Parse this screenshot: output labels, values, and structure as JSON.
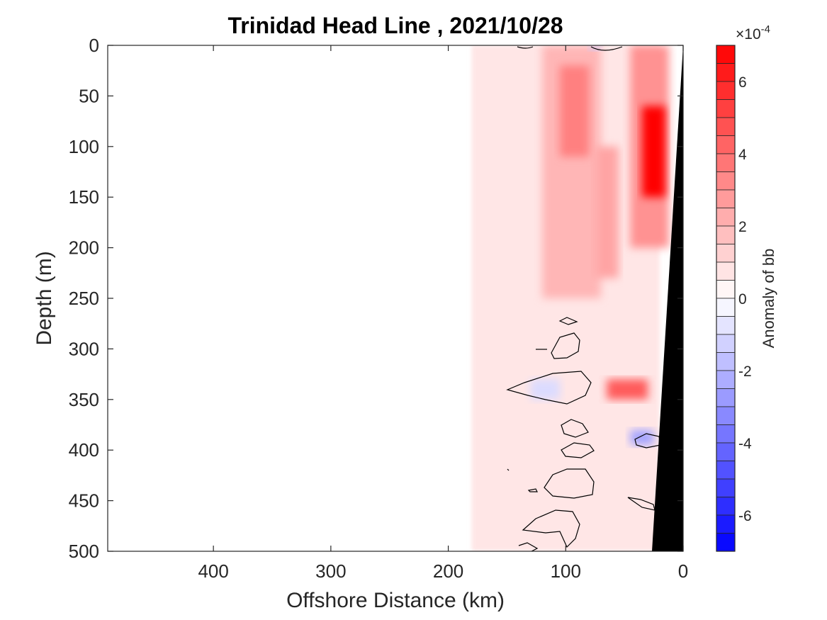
{
  "chart_data": {
    "type": "heatmap",
    "title": "Trinidad Head Line , 2021/10/28",
    "xlabel": "Offshore Distance (km)",
    "ylabel": "Depth (m)",
    "xlim": [
      490,
      0
    ],
    "ylim": [
      0,
      500
    ],
    "x_reversed": true,
    "y_reversed": true,
    "x_ticks": [
      400,
      300,
      200,
      100,
      0
    ],
    "y_ticks": [
      0,
      50,
      100,
      150,
      200,
      250,
      300,
      350,
      400,
      450,
      500
    ],
    "colorbar": {
      "label": "Anomaly of bb",
      "exponent_label": "×10",
      "exponent_power": "-4",
      "clim": [
        -7,
        7
      ],
      "ticks": [
        -6,
        -4,
        -2,
        0,
        2,
        4,
        6
      ],
      "levels": 28,
      "colors": {
        "negative": "#0000ff",
        "zero": "#ffffff",
        "positive": "#ff0000"
      }
    },
    "fields": [
      {
        "distance_km": [
          180,
          20
        ],
        "depth_m": [
          0,
          500
        ],
        "anomaly": 0.7
      },
      {
        "distance_km": [
          120,
          70
        ],
        "depth_m": [
          0,
          250
        ],
        "anomaly": 2.0
      },
      {
        "distance_km": [
          105,
          80
        ],
        "depth_m": [
          20,
          110
        ],
        "anomaly": 3.5
      },
      {
        "distance_km": [
          45,
          12
        ],
        "depth_m": [
          0,
          200
        ],
        "anomaly": 3.0
      },
      {
        "distance_km": [
          35,
          15
        ],
        "depth_m": [
          60,
          150
        ],
        "anomaly": 7.0
      },
      {
        "distance_km": [
          75,
          55
        ],
        "depth_m": [
          100,
          230
        ],
        "anomaly": 2.5
      },
      {
        "distance_km": [
          65,
          30
        ],
        "depth_m": [
          330,
          350
        ],
        "anomaly": 4.5
      },
      {
        "distance_km": [
          45,
          25
        ],
        "depth_m": [
          380,
          395
        ],
        "anomaly": -2.5
      },
      {
        "distance_km": [
          130,
          105
        ],
        "depth_m": [
          330,
          350
        ],
        "anomaly": -1.0
      },
      {
        "distance_km": [
          80,
          70
        ],
        "depth_m": [
          0,
          5
        ],
        "anomaly": -1.5
      }
    ],
    "bathymetry_color": "#000000"
  }
}
